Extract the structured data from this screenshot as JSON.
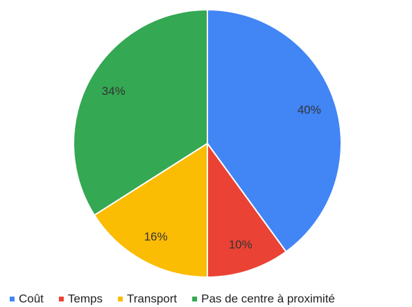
{
  "chart_data": {
    "type": "pie",
    "categories": [
      "Coût",
      "Temps",
      "Transport",
      "Pas de centre à proximité"
    ],
    "values": [
      40,
      10,
      16,
      34
    ],
    "value_labels": [
      "40%",
      "10%",
      "16%",
      "34%"
    ],
    "colors": [
      "#4285f4",
      "#ea4335",
      "#fbbc04",
      "#34a853"
    ],
    "legend": "bottom"
  }
}
